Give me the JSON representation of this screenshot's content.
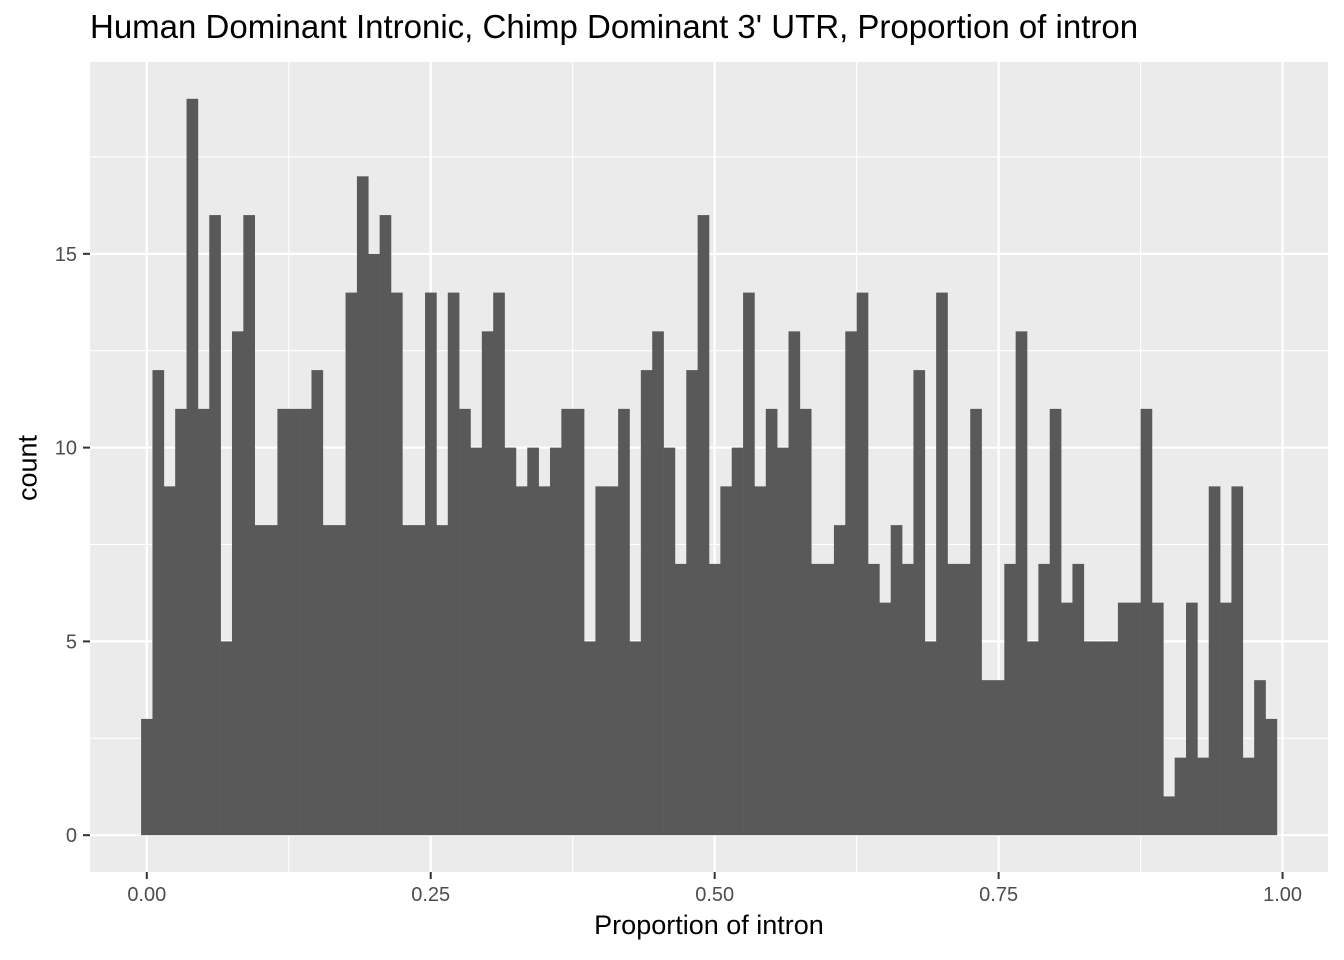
{
  "chart_data": {
    "type": "bar",
    "subtype": "histogram",
    "title": "Human Dominant Intronic, Chimp Dominant 3' UTR, Proportion of intron",
    "xlabel": "Proportion of intron",
    "ylabel": "count",
    "xlim": [
      -0.05,
      1.04
    ],
    "ylim": [
      -0.95,
      19.95
    ],
    "grid": true,
    "bar_color": "#595959",
    "panel_color": "#ebebeb",
    "x_ticks": [
      {
        "value": 0.0,
        "label": "0.00"
      },
      {
        "value": 0.25,
        "label": "0.25"
      },
      {
        "value": 0.5,
        "label": "0.50"
      },
      {
        "value": 0.75,
        "label": "0.75"
      },
      {
        "value": 1.0,
        "label": "1.00"
      }
    ],
    "y_ticks": [
      {
        "value": 0,
        "label": "0"
      },
      {
        "value": 5,
        "label": "5"
      },
      {
        "value": 10,
        "label": "10"
      },
      {
        "value": 15,
        "label": "15"
      }
    ],
    "bin_width": 0.01,
    "bin_starts": [
      -0.005,
      0.005,
      0.015,
      0.025,
      0.035,
      0.045,
      0.055,
      0.065,
      0.075,
      0.085,
      0.095,
      0.105,
      0.115,
      0.125,
      0.135,
      0.145,
      0.155,
      0.165,
      0.175,
      0.185,
      0.195,
      0.205,
      0.215,
      0.225,
      0.235,
      0.245,
      0.255,
      0.265,
      0.275,
      0.285,
      0.295,
      0.305,
      0.315,
      0.325,
      0.335,
      0.345,
      0.355,
      0.365,
      0.375,
      0.385,
      0.395,
      0.405,
      0.415,
      0.425,
      0.435,
      0.445,
      0.455,
      0.465,
      0.475,
      0.485,
      0.495,
      0.505,
      0.515,
      0.525,
      0.535,
      0.545,
      0.555,
      0.565,
      0.575,
      0.585,
      0.595,
      0.605,
      0.615,
      0.625,
      0.635,
      0.645,
      0.655,
      0.665,
      0.675,
      0.685,
      0.695,
      0.705,
      0.715,
      0.725,
      0.735,
      0.745,
      0.755,
      0.765,
      0.775,
      0.785,
      0.795,
      0.805,
      0.815,
      0.825,
      0.835,
      0.845,
      0.855,
      0.865,
      0.875,
      0.885,
      0.895,
      0.905,
      0.915,
      0.925,
      0.935,
      0.945,
      0.955,
      0.965,
      0.975,
      0.985
    ],
    "values": [
      3,
      12,
      9,
      11,
      19,
      11,
      16,
      5,
      13,
      16,
      8,
      8,
      11,
      11,
      11,
      12,
      8,
      8,
      14,
      17,
      15,
      16,
      14,
      8,
      8,
      14,
      8,
      14,
      11,
      10,
      13,
      14,
      10,
      9,
      10,
      9,
      10,
      11,
      11,
      5,
      9,
      9,
      11,
      5,
      12,
      13,
      10,
      7,
      12,
      16,
      7,
      9,
      10,
      14,
      9,
      11,
      10,
      13,
      11,
      7,
      7,
      8,
      13,
      14,
      7,
      6,
      8,
      7,
      12,
      5,
      14,
      7,
      7,
      11,
      4,
      4,
      7,
      13,
      5,
      7,
      11,
      6,
      7,
      5,
      5,
      5,
      6,
      6,
      11,
      6,
      1,
      2,
      6,
      2,
      9,
      6,
      9,
      2,
      4,
      3
    ]
  }
}
